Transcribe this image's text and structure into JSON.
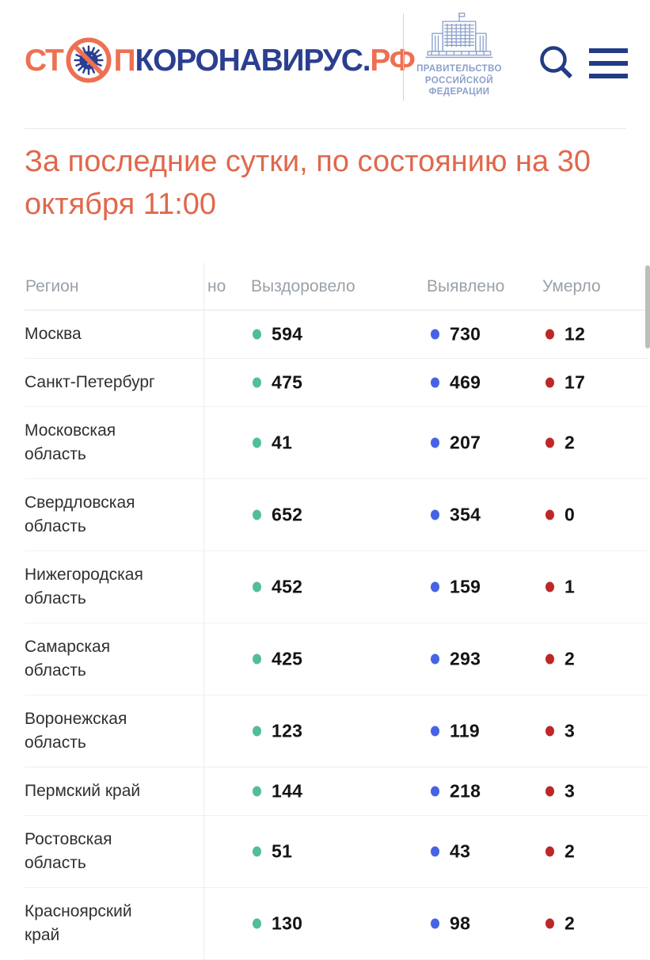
{
  "header": {
    "logo": {
      "part1": "СТ",
      "part2": "П",
      "part3": "КОРОНАВИРУС.",
      "part4": "РФ"
    },
    "government": {
      "line1": "ПРАВИТЕЛЬСТВО",
      "line2": "РОССИЙСКОЙ",
      "line3": "ФЕДЕРАЦИИ"
    }
  },
  "heading": {
    "text": "За последние сутки, по состоянию на 30 октября 11:00"
  },
  "table": {
    "columns": {
      "region": "Регион",
      "infected_fragment": "но",
      "recovered": "Выздоровело",
      "detected": "Выявлено",
      "died": "Умерло"
    },
    "rows": [
      {
        "region": "Москва",
        "recovered": "594",
        "detected": "730",
        "died": "12"
      },
      {
        "region": "Санкт-Петербург",
        "recovered": "475",
        "detected": "469",
        "died": "17"
      },
      {
        "region": "Московская область",
        "recovered": "41",
        "detected": "207",
        "died": "2"
      },
      {
        "region": "Свердловская область",
        "recovered": "652",
        "detected": "354",
        "died": "0"
      },
      {
        "region": "Нижегородская область",
        "recovered": "452",
        "detected": "159",
        "died": "1"
      },
      {
        "region": "Самарская область",
        "recovered": "425",
        "detected": "293",
        "died": "2"
      },
      {
        "region": "Воронежская область",
        "recovered": "123",
        "detected": "119",
        "died": "3"
      },
      {
        "region": "Пермский край",
        "recovered": "144",
        "detected": "218",
        "died": "3"
      },
      {
        "region": "Ростовская область",
        "recovered": "51",
        "detected": "43",
        "died": "2"
      },
      {
        "region": "Красноярский край",
        "recovered": "130",
        "detected": "98",
        "died": "2"
      }
    ],
    "colors": {
      "recovered": "#52bd9c",
      "detected": "#4663e6",
      "died": "#be2727",
      "brand_orange": "#ed7052",
      "brand_navy": "#2b3f90",
      "heading_orange": "#e0684c"
    }
  }
}
